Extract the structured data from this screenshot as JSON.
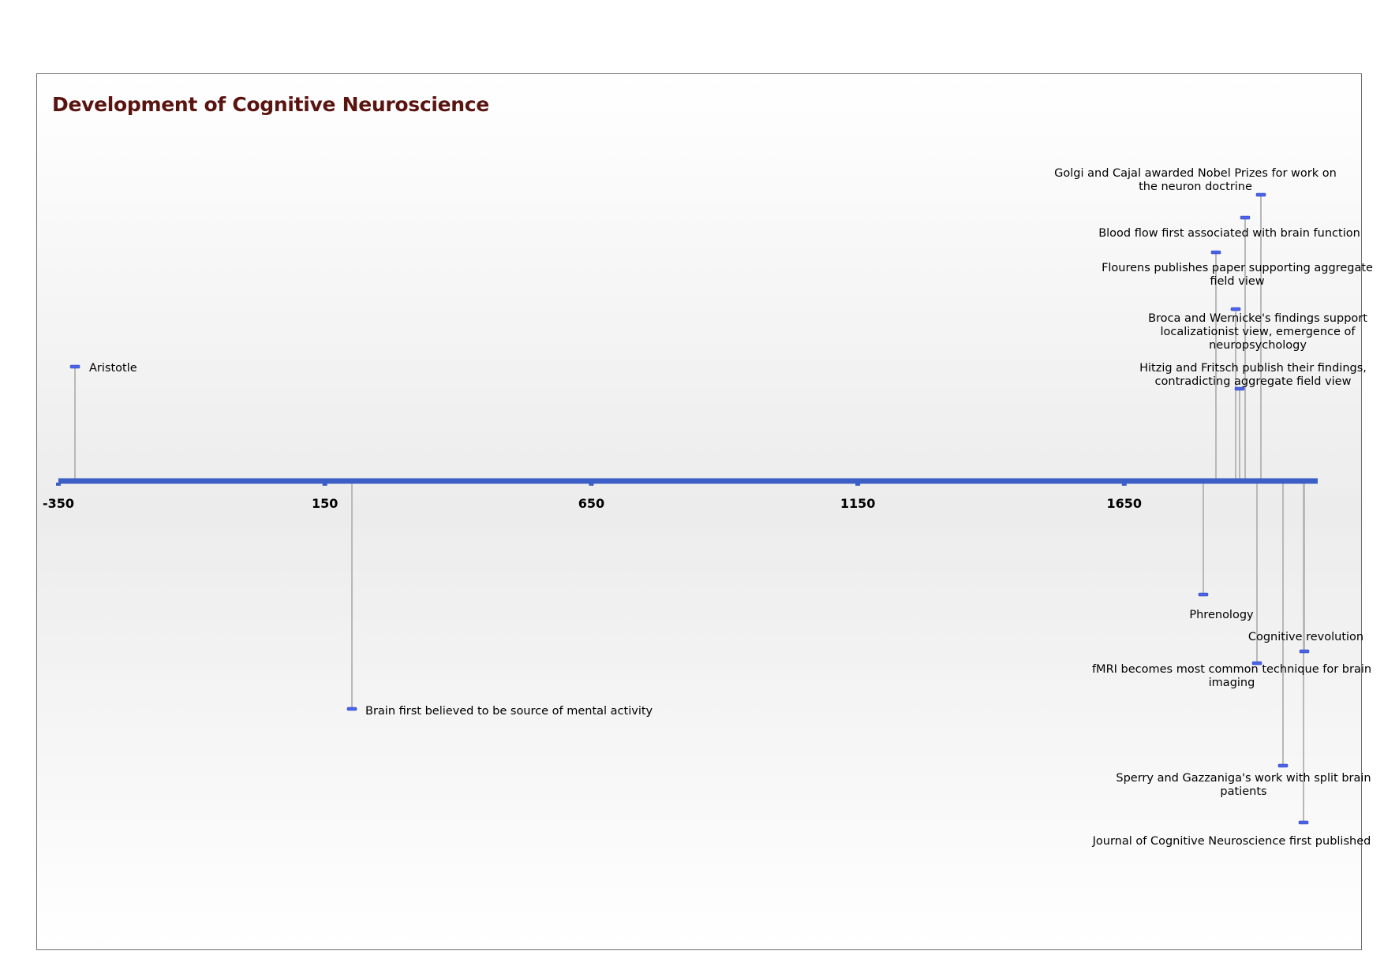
{
  "title": "Development of Cognitive Neuroscience",
  "colors": {
    "axis": "#3b5fc7",
    "marker": "#4b63e8",
    "connector": "#b8b8b8",
    "title": "#5a1410",
    "border": "#6e6e6e"
  },
  "chart_data": {
    "type": "timeline",
    "axis": {
      "min": -350,
      "max": 2020,
      "ticks": [
        -350,
        150,
        650,
        1150,
        1650
      ]
    },
    "events": [
      {
        "year": -320,
        "label": "Aristotle",
        "side": "above",
        "align": "right-of-marker"
      },
      {
        "year": 200,
        "label": "Brain first believed to be source of mental activity",
        "side": "below",
        "align": "right-of-marker"
      },
      {
        "year": 1800,
        "label": "Phrenology",
        "side": "below",
        "align": "left-of-marker"
      },
      {
        "year": 1825,
        "label": "Flourens publishes paper supporting aggregate field view",
        "side": "above",
        "align": "left-of-marker"
      },
      {
        "year": 1861,
        "label": "Broca and Wernicke's findings support localizationist view, emergence of neuropsychology",
        "side": "above",
        "align": "left-of-marker"
      },
      {
        "year": 1870,
        "label": "Hitzig and Fritsch publish their findings, contradicting aggregate field view",
        "side": "above",
        "align": "left-of-marker"
      },
      {
        "year": 1878,
        "label": "Blood flow first associated with brain function",
        "side": "above",
        "align": "left-of-marker"
      },
      {
        "year": 1906,
        "label": "Golgi and Cajal awarded Nobel Prizes for work on the neuron doctrine",
        "side": "above",
        "align": "left-of-marker"
      },
      {
        "year": 1990,
        "label": "fMRI becomes most common technique for brain imaging",
        "side": "below",
        "align": "left-of-marker"
      },
      {
        "year": 1960,
        "label": "Sperry and Gazzaniga's work with split brain patients",
        "side": "below",
        "align": "left-of-marker"
      },
      {
        "year": 1950,
        "label": "Cognitive revolution",
        "side": "below",
        "align": "left-of-marker"
      },
      {
        "year": 1989,
        "label": "Journal of Cognitive Neuroscience first published",
        "side": "below",
        "align": "left-of-marker"
      }
    ]
  }
}
